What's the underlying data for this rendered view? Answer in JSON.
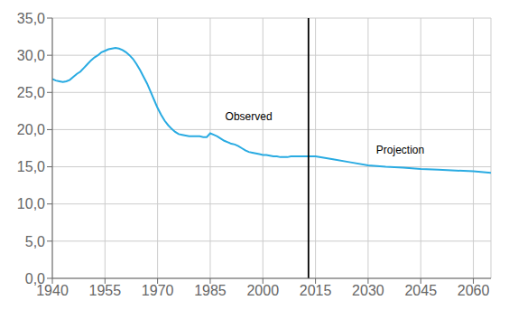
{
  "chart_data": {
    "type": "line",
    "x": [
      1940,
      1941,
      1942,
      1943,
      1944,
      1945,
      1946,
      1947,
      1948,
      1949,
      1950,
      1951,
      1952,
      1953,
      1954,
      1955,
      1956,
      1957,
      1958,
      1959,
      1960,
      1961,
      1962,
      1963,
      1964,
      1965,
      1966,
      1967,
      1968,
      1969,
      1970,
      1971,
      1972,
      1973,
      1974,
      1975,
      1976,
      1977,
      1978,
      1979,
      1980,
      1981,
      1982,
      1983,
      1984,
      1985,
      1986,
      1987,
      1988,
      1989,
      1990,
      1991,
      1992,
      1993,
      1994,
      1995,
      1996,
      1997,
      1998,
      1999,
      2000,
      2001,
      2002,
      2003,
      2004,
      2005,
      2006,
      2007,
      2008,
      2009,
      2010,
      2011,
      2012,
      2013,
      2014,
      2015,
      2020,
      2025,
      2030,
      2035,
      2040,
      2045,
      2050,
      2055,
      2060,
      2065
    ],
    "values": [
      26.8,
      26.6,
      26.5,
      26.4,
      26.5,
      26.7,
      27.1,
      27.5,
      27.8,
      28.3,
      28.8,
      29.3,
      29.7,
      30.0,
      30.4,
      30.6,
      30.8,
      30.9,
      31.0,
      30.9,
      30.7,
      30.4,
      30.0,
      29.5,
      28.8,
      28.0,
      27.1,
      26.2,
      25.1,
      24.0,
      22.9,
      22.0,
      21.2,
      20.6,
      20.1,
      19.7,
      19.4,
      19.3,
      19.2,
      19.1,
      19.1,
      19.1,
      19.1,
      19.0,
      19.0,
      19.5,
      19.3,
      19.1,
      18.8,
      18.5,
      18.3,
      18.1,
      18.0,
      17.8,
      17.5,
      17.2,
      17.0,
      16.9,
      16.8,
      16.7,
      16.6,
      16.6,
      16.5,
      16.4,
      16.4,
      16.3,
      16.3,
      16.3,
      16.4,
      16.4,
      16.4,
      16.4,
      16.4,
      16.4,
      16.4,
      16.4,
      16.0,
      15.6,
      15.2,
      15.0,
      14.9,
      14.7,
      14.6,
      14.5,
      14.4,
      14.2
    ],
    "color": "#29ABE2",
    "xlim": [
      1940,
      2065
    ],
    "xticks": [
      1940,
      1955,
      1970,
      1985,
      2000,
      2015,
      2030,
      2045,
      2060
    ],
    "ylim": [
      0.0,
      35.0
    ],
    "yticks": [
      {
        "value": 0.0,
        "label": "0,0"
      },
      {
        "value": 5.0,
        "label": "5,0"
      },
      {
        "value": 10.0,
        "label": "10,0"
      },
      {
        "value": 15.0,
        "label": "15,0"
      },
      {
        "value": 20.0,
        "label": "20,0"
      },
      {
        "value": 25.0,
        "label": "25,0"
      },
      {
        "value": 30.0,
        "label": "30,0"
      },
      {
        "value": 35.0,
        "label": "35,0"
      }
    ],
    "grid": true,
    "reference_lines": [
      {
        "x": 2013,
        "color": "#000000"
      }
    ],
    "annotations": [
      {
        "text": "Observed",
        "x": 1988,
        "y": 21.8
      },
      {
        "text": "Projection",
        "x": 2031,
        "y": 17.3
      }
    ]
  }
}
